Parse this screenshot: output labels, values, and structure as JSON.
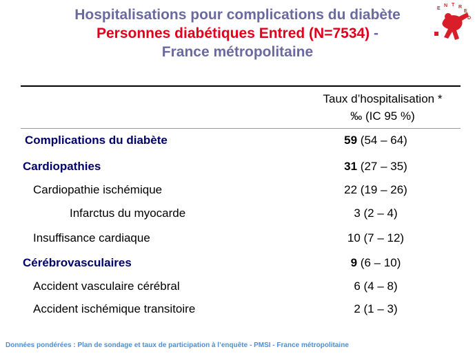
{
  "title": {
    "line1": "Hospitalisations pour complications du diabète",
    "line2_red": "Personnes diabétiques Entred (N=7534)",
    "line2_dash": " -",
    "line3": "France métropolitaine"
  },
  "logo": {
    "letters": [
      "E",
      "N",
      "T",
      "R",
      "E",
      "D"
    ]
  },
  "table": {
    "header_line1": "Taux d’hospitalisation *",
    "header_line2": "‰ (IC 95 %)",
    "rows": [
      {
        "label": "Complications du diabète",
        "value": "59",
        "ci": " (54 – 64)"
      },
      {
        "label": "Cardiopathies",
        "value": "31",
        "ci": " (27 – 35)"
      },
      {
        "label": "Cardiopathie ischémique",
        "value": "22 (19 – 26)"
      },
      {
        "label": "Infarctus du myocarde",
        "value": "3 (2 – 4)"
      },
      {
        "label": "Insuffisance cardiaque",
        "value": "10 (7 – 12)"
      },
      {
        "label": "Cérébrovasculaires",
        "value": "9",
        "ci": " (6 – 10)"
      },
      {
        "label": "Accident vasculaire cérébral",
        "value": "6 (4 – 8)"
      },
      {
        "label": "Accident ischémique transitoire",
        "value": "2 (1 – 3)"
      }
    ]
  },
  "footer": "Données pondérées : Plan de sondage et taux de participation à l’enquête - PMSI - France métropolitaine"
}
